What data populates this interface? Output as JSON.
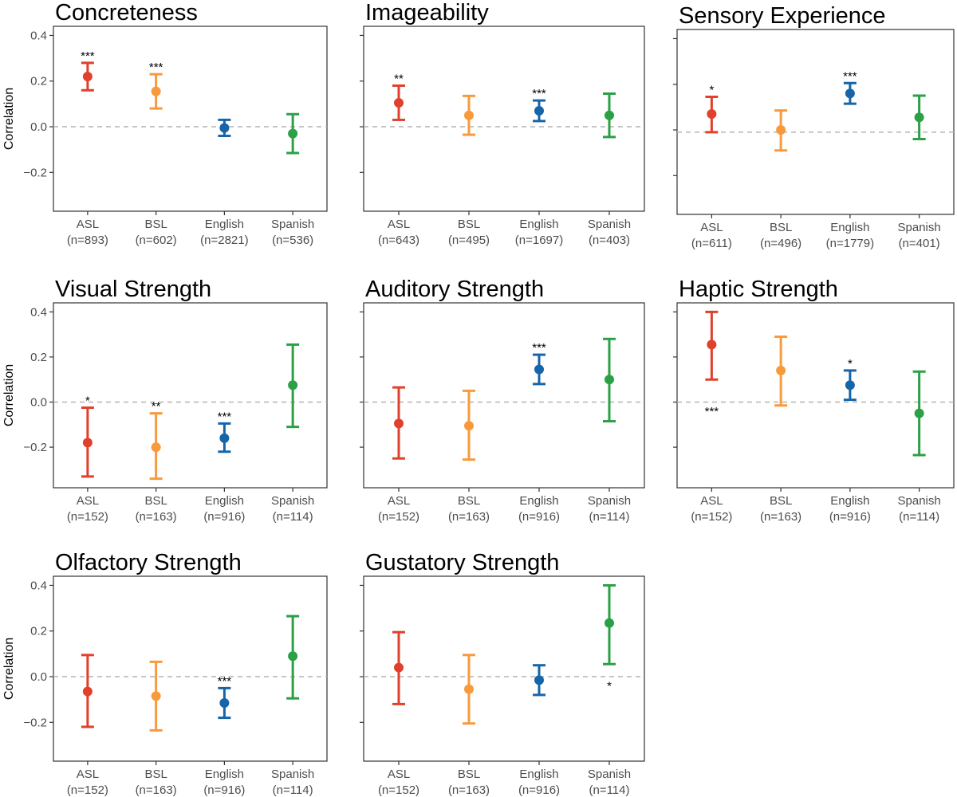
{
  "colors": {
    "ASL": "#e0402c",
    "BSL": "#f89a3c",
    "English": "#1565a8",
    "Spanish": "#2ba046",
    "reference_line": "#b3b3b3",
    "panel_border": "#333333"
  },
  "chart_data": [
    {
      "type": "errorbar",
      "title": "Concreteness",
      "ylabel": "Correlation",
      "show_y_tick_labels": true,
      "show_ylabel": true,
      "ylim": [
        -0.37,
        0.44
      ],
      "y_ticks": [
        0.4,
        0.2,
        0.0,
        -0.2
      ],
      "y_tick_labels": [
        "0.4",
        "0.2",
        "0.0",
        "−0.2"
      ],
      "reference_line": 0.0,
      "points": [
        {
          "lang": "ASL",
          "n_label": "(n=893)",
          "est": 0.22,
          "lo": 0.16,
          "hi": 0.28,
          "sig": "***",
          "sig_pos": "above"
        },
        {
          "lang": "BSL",
          "n_label": "(n=602)",
          "est": 0.155,
          "lo": 0.08,
          "hi": 0.23,
          "sig": "***",
          "sig_pos": "above"
        },
        {
          "lang": "English",
          "n_label": "(n=2821)",
          "est": -0.005,
          "lo": -0.04,
          "hi": 0.03,
          "sig": "",
          "sig_pos": "above"
        },
        {
          "lang": "Spanish",
          "n_label": "(n=536)",
          "est": -0.03,
          "lo": -0.115,
          "hi": 0.055,
          "sig": "",
          "sig_pos": "above"
        }
      ]
    },
    {
      "type": "errorbar",
      "title": "Imageability",
      "ylabel": "",
      "show_y_tick_labels": false,
      "show_ylabel": false,
      "ylim": [
        -0.37,
        0.44
      ],
      "y_ticks": [
        0.4,
        0.2,
        0.0,
        -0.2
      ],
      "y_tick_labels": [
        "0.4",
        "0.2",
        "0.0",
        "−0.2"
      ],
      "reference_line": 0.0,
      "points": [
        {
          "lang": "ASL",
          "n_label": "(n=643)",
          "est": 0.105,
          "lo": 0.03,
          "hi": 0.18,
          "sig": "**",
          "sig_pos": "above"
        },
        {
          "lang": "BSL",
          "n_label": "(n=495)",
          "est": 0.05,
          "lo": -0.035,
          "hi": 0.135,
          "sig": "",
          "sig_pos": "above"
        },
        {
          "lang": "English",
          "n_label": "(n=1697)",
          "est": 0.07,
          "lo": 0.025,
          "hi": 0.115,
          "sig": "***",
          "sig_pos": "above"
        },
        {
          "lang": "Spanish",
          "n_label": "(n=403)",
          "est": 0.05,
          "lo": -0.045,
          "hi": 0.145,
          "sig": "",
          "sig_pos": "above"
        }
      ]
    },
    {
      "type": "errorbar",
      "title": "Sensory Experience",
      "ylabel": "",
      "show_y_tick_labels": false,
      "show_ylabel": false,
      "ylim": [
        -0.37,
        0.44
      ],
      "y_ticks": [
        0.4,
        0.2,
        0.0,
        -0.2
      ],
      "y_tick_labels": [
        "0.4",
        "0.2",
        "0.0",
        "−0.2"
      ],
      "reference_line": -0.01,
      "points": [
        {
          "lang": "ASL",
          "n_label": "(n=611)",
          "est": 0.07,
          "lo": -0.01,
          "hi": 0.145,
          "sig": "*",
          "sig_pos": "above"
        },
        {
          "lang": "BSL",
          "n_label": "(n=496)",
          "est": 0.0,
          "lo": -0.09,
          "hi": 0.085,
          "sig": "",
          "sig_pos": "above"
        },
        {
          "lang": "English",
          "n_label": "(n=1779)",
          "est": 0.16,
          "lo": 0.115,
          "hi": 0.205,
          "sig": "***",
          "sig_pos": "above"
        },
        {
          "lang": "Spanish",
          "n_label": "(n=401)",
          "est": 0.055,
          "lo": -0.04,
          "hi": 0.15,
          "sig": "",
          "sig_pos": "above"
        }
      ]
    },
    {
      "type": "errorbar",
      "title": "Visual Strength",
      "ylabel": "Correlation",
      "show_y_tick_labels": true,
      "show_ylabel": true,
      "ylim": [
        -0.38,
        0.44
      ],
      "y_ticks": [
        0.4,
        0.2,
        0.0,
        -0.2
      ],
      "y_tick_labels": [
        "0.4",
        "0.2",
        "0.0",
        "−0.2"
      ],
      "reference_line": 0.0,
      "points": [
        {
          "lang": "ASL",
          "n_label": "(n=152)",
          "est": -0.18,
          "lo": -0.33,
          "hi": -0.025,
          "sig": "*",
          "sig_pos": "above"
        },
        {
          "lang": "BSL",
          "n_label": "(n=163)",
          "est": -0.2,
          "lo": -0.34,
          "hi": -0.05,
          "sig": "**",
          "sig_pos": "above"
        },
        {
          "lang": "English",
          "n_label": "(n=916)",
          "est": -0.16,
          "lo": -0.22,
          "hi": -0.095,
          "sig": "***",
          "sig_pos": "above"
        },
        {
          "lang": "Spanish",
          "n_label": "(n=114)",
          "est": 0.075,
          "lo": -0.11,
          "hi": 0.255,
          "sig": "",
          "sig_pos": "above"
        }
      ]
    },
    {
      "type": "errorbar",
      "title": "Auditory Strength",
      "ylabel": "",
      "show_y_tick_labels": false,
      "show_ylabel": false,
      "ylim": [
        -0.38,
        0.44
      ],
      "y_ticks": [
        0.4,
        0.2,
        0.0,
        -0.2
      ],
      "y_tick_labels": [
        "0.4",
        "0.2",
        "0.0",
        "−0.2"
      ],
      "reference_line": 0.0,
      "points": [
        {
          "lang": "ASL",
          "n_label": "(n=152)",
          "est": -0.095,
          "lo": -0.25,
          "hi": 0.065,
          "sig": "",
          "sig_pos": "above"
        },
        {
          "lang": "BSL",
          "n_label": "(n=163)",
          "est": -0.105,
          "lo": -0.255,
          "hi": 0.05,
          "sig": "",
          "sig_pos": "above"
        },
        {
          "lang": "English",
          "n_label": "(n=916)",
          "est": 0.145,
          "lo": 0.08,
          "hi": 0.21,
          "sig": "***",
          "sig_pos": "above"
        },
        {
          "lang": "Spanish",
          "n_label": "(n=114)",
          "est": 0.1,
          "lo": -0.085,
          "hi": 0.28,
          "sig": "",
          "sig_pos": "above"
        }
      ]
    },
    {
      "type": "errorbar",
      "title": "Haptic Strength",
      "ylabel": "",
      "show_y_tick_labels": false,
      "show_ylabel": false,
      "ylim": [
        -0.38,
        0.44
      ],
      "y_ticks": [
        0.4,
        0.2,
        0.0,
        -0.2
      ],
      "y_tick_labels": [
        "0.4",
        "0.2",
        "0.0",
        "−0.2"
      ],
      "reference_line": 0.0,
      "points": [
        {
          "lang": "ASL",
          "n_label": "(n=152)",
          "est": 0.255,
          "lo": 0.1,
          "hi": 0.4,
          "sig": "***",
          "sig_pos": "below"
        },
        {
          "lang": "BSL",
          "n_label": "(n=163)",
          "est": 0.14,
          "lo": -0.015,
          "hi": 0.29,
          "sig": "",
          "sig_pos": "above"
        },
        {
          "lang": "English",
          "n_label": "(n=916)",
          "est": 0.075,
          "lo": 0.01,
          "hi": 0.14,
          "sig": "*",
          "sig_pos": "above"
        },
        {
          "lang": "Spanish",
          "n_label": "(n=114)",
          "est": -0.05,
          "lo": -0.235,
          "hi": 0.135,
          "sig": "",
          "sig_pos": "above"
        }
      ]
    },
    {
      "type": "errorbar",
      "title": "Olfactory Strength",
      "ylabel": "Correlation",
      "show_y_tick_labels": true,
      "show_ylabel": true,
      "ylim": [
        -0.37,
        0.44
      ],
      "y_ticks": [
        0.4,
        0.2,
        0.0,
        -0.2
      ],
      "y_tick_labels": [
        "0.4",
        "0.2",
        "0.0",
        "−0.2"
      ],
      "reference_line": 0.0,
      "points": [
        {
          "lang": "ASL",
          "n_label": "(n=152)",
          "est": -0.065,
          "lo": -0.22,
          "hi": 0.095,
          "sig": "",
          "sig_pos": "above"
        },
        {
          "lang": "BSL",
          "n_label": "(n=163)",
          "est": -0.085,
          "lo": -0.235,
          "hi": 0.065,
          "sig": "",
          "sig_pos": "above"
        },
        {
          "lang": "English",
          "n_label": "(n=916)",
          "est": -0.115,
          "lo": -0.18,
          "hi": -0.05,
          "sig": "***",
          "sig_pos": "above"
        },
        {
          "lang": "Spanish",
          "n_label": "(n=114)",
          "est": 0.09,
          "lo": -0.095,
          "hi": 0.265,
          "sig": "",
          "sig_pos": "above"
        }
      ]
    },
    {
      "type": "errorbar",
      "title": "Gustatory Strength",
      "ylabel": "",
      "show_y_tick_labels": false,
      "show_ylabel": false,
      "ylim": [
        -0.37,
        0.44
      ],
      "y_ticks": [
        0.4,
        0.2,
        0.0,
        -0.2
      ],
      "y_tick_labels": [
        "0.4",
        "0.2",
        "0.0",
        "−0.2"
      ],
      "reference_line": 0.0,
      "points": [
        {
          "lang": "ASL",
          "n_label": "(n=152)",
          "est": 0.04,
          "lo": -0.12,
          "hi": 0.195,
          "sig": "",
          "sig_pos": "above"
        },
        {
          "lang": "BSL",
          "n_label": "(n=163)",
          "est": -0.055,
          "lo": -0.205,
          "hi": 0.095,
          "sig": "",
          "sig_pos": "above"
        },
        {
          "lang": "English",
          "n_label": "(n=916)",
          "est": -0.015,
          "lo": -0.08,
          "hi": 0.05,
          "sig": "",
          "sig_pos": "above"
        },
        {
          "lang": "Spanish",
          "n_label": "(n=114)",
          "est": 0.235,
          "lo": 0.055,
          "hi": 0.4,
          "sig": "*",
          "sig_pos": "below"
        }
      ]
    }
  ]
}
